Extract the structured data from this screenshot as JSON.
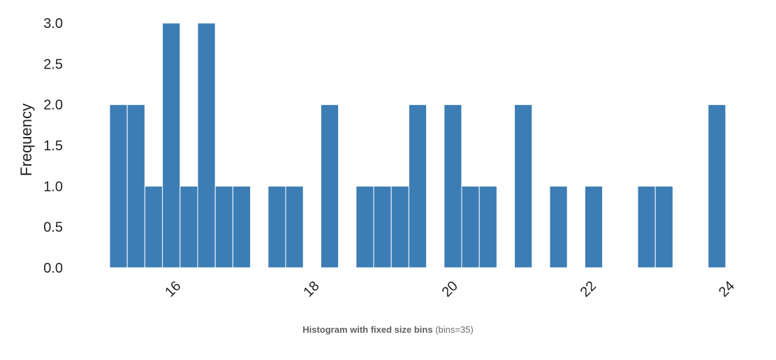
{
  "chart_data": {
    "type": "bar",
    "title": "Histogram with fixed size bins",
    "subtitle": "(bins=35)",
    "xlabel": "",
    "ylabel": "Frequency",
    "xlim": [
      15.0,
      24.0
    ],
    "ylim": [
      0,
      3.0
    ],
    "x_ticks": [
      16,
      18,
      20,
      22,
      24
    ],
    "x_tick_labels": [
      "16",
      "18",
      "20",
      "22",
      "24"
    ],
    "y_ticks": [
      0.0,
      0.5,
      1.0,
      1.5,
      2.0,
      2.5,
      3.0
    ],
    "y_tick_labels": [
      "0.0",
      "0.5",
      "1.0",
      "1.5",
      "2.0",
      "2.5",
      "3.0"
    ],
    "bins": 35,
    "bin_edges_start": 15.0,
    "bin_width": 0.2543,
    "values": [
      2,
      2,
      1,
      3,
      1,
      3,
      1,
      1,
      0,
      1,
      1,
      0,
      2,
      0,
      1,
      1,
      1,
      2,
      0,
      2,
      1,
      1,
      0,
      2,
      0,
      1,
      0,
      1,
      0,
      0,
      1,
      1,
      0,
      0,
      2
    ],
    "bar_color": "#3d7db5",
    "grid": false
  }
}
